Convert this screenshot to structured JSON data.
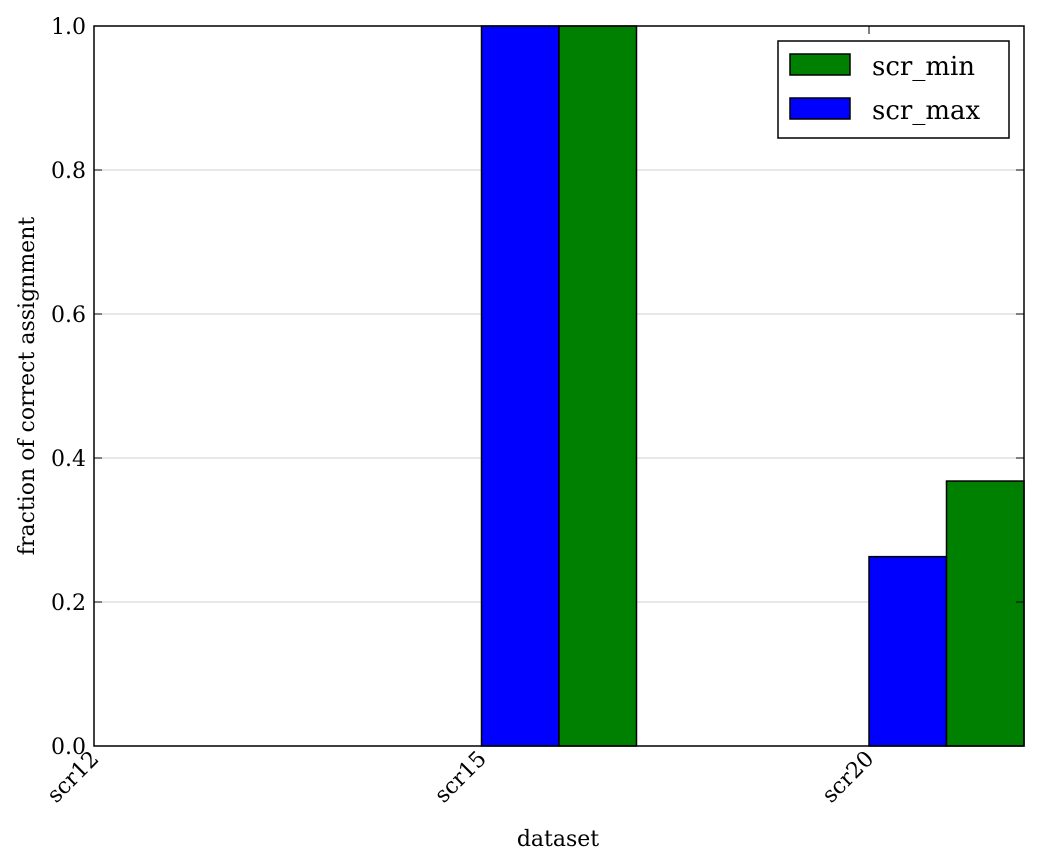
{
  "chart_data": {
    "type": "bar",
    "title": "",
    "xlabel": "dataset",
    "ylabel": "fraction of correct assignment",
    "categories": [
      "scr12",
      "scr15",
      "scr20"
    ],
    "ylim": [
      0.0,
      1.0
    ],
    "yticks": [
      "0.0",
      "0.2",
      "0.4",
      "0.6",
      "0.8",
      "1.0"
    ],
    "ytick_values": [
      0.0,
      0.2,
      0.4,
      0.6,
      0.8,
      1.0
    ],
    "grid": "horizontal",
    "legend_position": "top-right",
    "series": [
      {
        "name": "scr_max",
        "color": "#0000ff",
        "values": [
          0.0,
          1.0,
          0.263
        ]
      },
      {
        "name": "scr_min",
        "color": "#008000",
        "values": [
          0.0,
          1.0,
          0.368
        ]
      }
    ],
    "legend_order": [
      "scr_min",
      "scr_max"
    ]
  }
}
